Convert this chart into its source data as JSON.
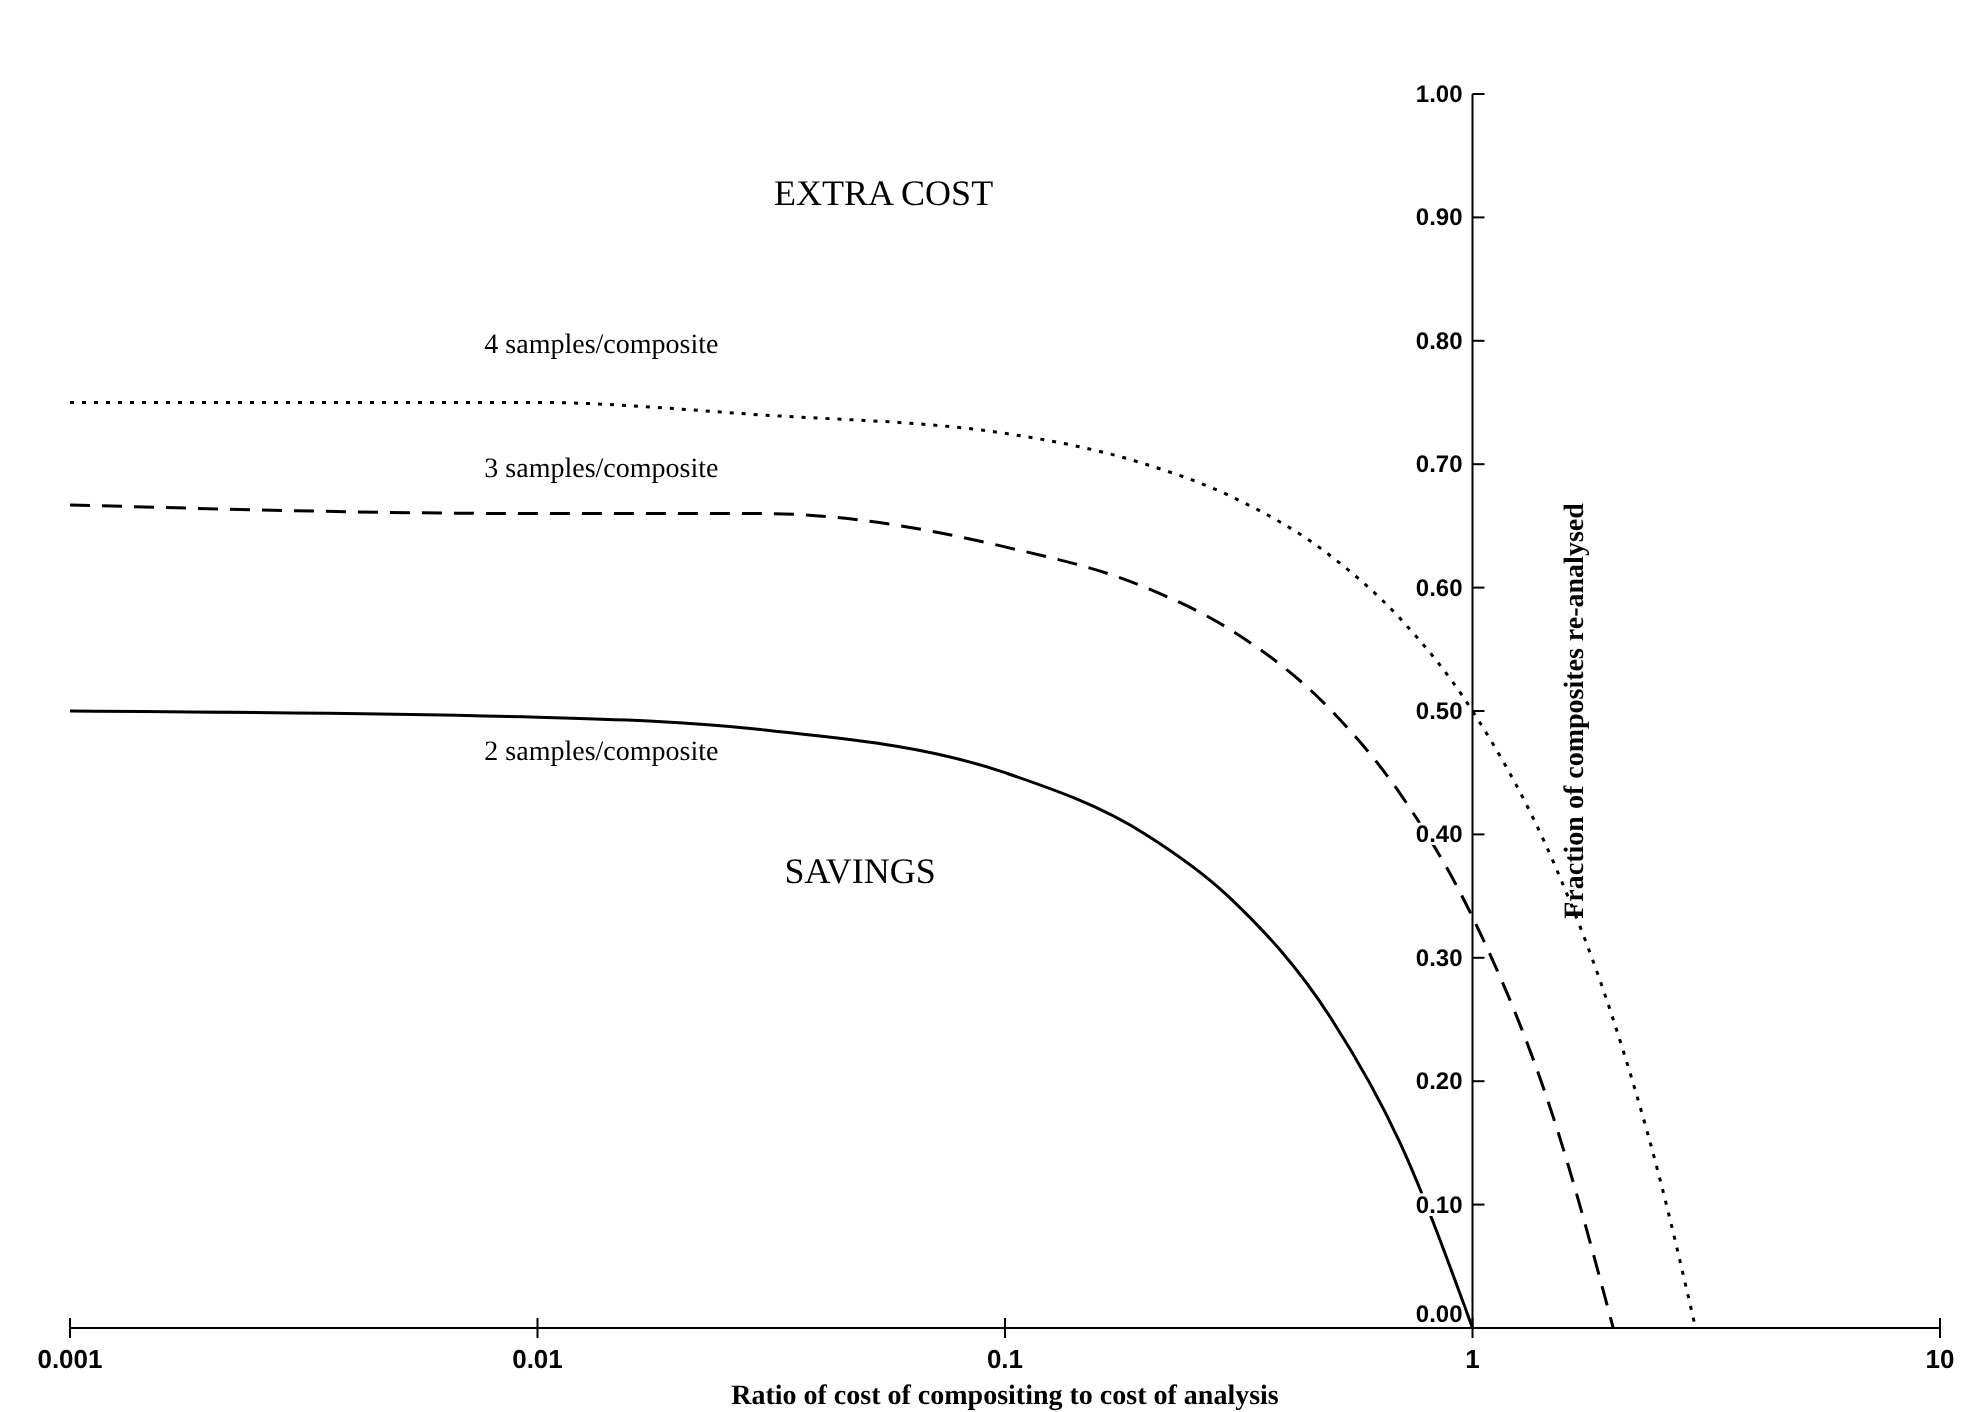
{
  "chart_data": {
    "type": "line",
    "xlabel": "Ratio of cost of compositing to cost of analysis",
    "ylabel": "Fraction of composites re-analysed",
    "log": "x",
    "xlim": [
      0.001,
      10
    ],
    "xticks": [
      {
        "value": 0.001,
        "label": "0.001"
      },
      {
        "value": 0.01,
        "label": "0.01"
      },
      {
        "value": 0.1,
        "label": "0.1"
      },
      1,
      10
    ],
    "ylim": [
      0,
      1
    ],
    "yticks": [
      {
        "value": 0,
        "label": "0.00"
      },
      {
        "value": 0.1,
        "label": "0.10"
      },
      {
        "value": 0.2,
        "label": "0.20"
      },
      {
        "value": 0.3,
        "label": "0.30"
      },
      {
        "value": 0.4,
        "label": "0.40"
      },
      {
        "value": 0.5,
        "label": "0.50"
      },
      {
        "value": 0.6,
        "label": "0.60"
      },
      {
        "value": 0.7,
        "label": "0.70"
      },
      {
        "value": 0.8,
        "label": "0.80"
      },
      {
        "value": 0.9,
        "label": "0.90"
      },
      {
        "value": 1,
        "label": "1.00"
      }
    ],
    "grid": false,
    "marker": "none",
    "annotations": [
      "EXTRA COST",
      "SAVINGS"
    ],
    "series": [
      {
        "name": "2 samples/composite",
        "color": "#000000",
        "line_style": "solid",
        "x": [
          0.001,
          0.01,
          0.03,
          0.1,
          0.2,
          0.3,
          0.5,
          0.7,
          1
        ],
        "values": [
          0.5,
          0.495,
          0.485,
          0.45,
          0.4,
          0.35,
          0.25,
          0.15,
          0
        ]
      },
      {
        "name": "3 samples/composite",
        "color": "#000000",
        "line_style": "dashed",
        "x": [
          0.001,
          0.01,
          0.03,
          0.1,
          0.2,
          0.3,
          0.5,
          0.7,
          1,
          1.5,
          2
        ],
        "values": [
          0.667,
          0.66,
          0.66,
          0.633,
          0.6,
          0.567,
          0.5,
          0.433,
          0.333,
          0.167,
          0
        ]
      },
      {
        "name": "4 samples/composite",
        "color": "#000000",
        "line_style": "dotted",
        "x": [
          0.001,
          0.01,
          0.03,
          0.1,
          0.2,
          0.3,
          0.5,
          0.7,
          1,
          1.5,
          2,
          2.5,
          3
        ],
        "values": [
          0.75,
          0.75,
          0.74,
          0.725,
          0.7,
          0.675,
          0.625,
          0.575,
          0.5,
          0.375,
          0.25,
          0.125,
          0
        ]
      }
    ]
  }
}
